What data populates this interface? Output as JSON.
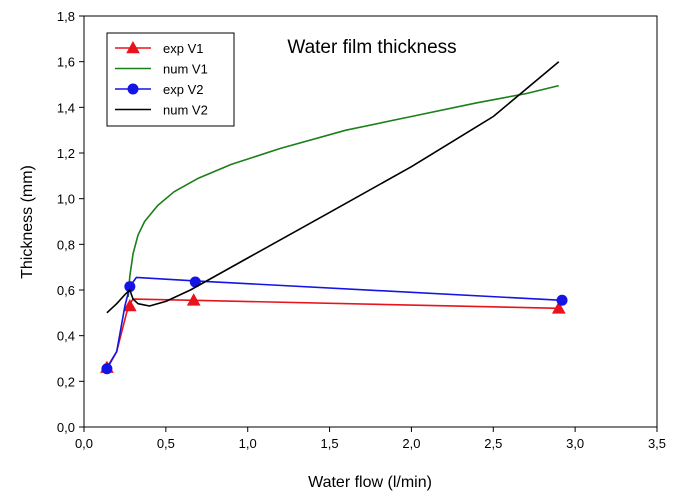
{
  "chart_data": {
    "type": "line",
    "title": "Water film thickness",
    "xlabel": "Water flow (l/min)",
    "ylabel": "Thickness (mm)",
    "xlim": [
      0,
      3.5
    ],
    "ylim": [
      0,
      1.8
    ],
    "xticks": [
      "0,0",
      "0,5",
      "1,0",
      "1,5",
      "2,0",
      "2,5",
      "3,0",
      "3,5"
    ],
    "xtick_values": [
      0,
      0.5,
      1.0,
      1.5,
      2.0,
      2.5,
      3.0,
      3.5
    ],
    "yticks": [
      "0,0",
      "0,2",
      "0,4",
      "0,6",
      "0,8",
      "1,0",
      "1,2",
      "1,4",
      "1,6",
      "1,8"
    ],
    "ytick_values": [
      0,
      0.2,
      0.4,
      0.6,
      0.8,
      1.0,
      1.2,
      1.4,
      1.6,
      1.8
    ],
    "grid": false,
    "legend_position": "top-left",
    "series": [
      {
        "name": "exp V1",
        "kind": "experimental",
        "marker": "triangle",
        "color": "#e8141c",
        "points": [
          [
            0.14,
            0.26
          ],
          [
            0.28,
            0.53
          ],
          [
            0.67,
            0.555
          ],
          [
            2.9,
            0.52
          ]
        ],
        "curve": [
          [
            0.14,
            0.26
          ],
          [
            0.2,
            0.33
          ],
          [
            0.26,
            0.5
          ],
          [
            0.28,
            0.54
          ],
          [
            0.3,
            0.56
          ],
          [
            0.67,
            0.555
          ],
          [
            2.9,
            0.52
          ]
        ]
      },
      {
        "name": "num V1",
        "kind": "numerical",
        "marker": "none",
        "color": "#1a7f1a",
        "curve": [
          [
            0.27,
            0.57
          ],
          [
            0.28,
            0.66
          ],
          [
            0.3,
            0.76
          ],
          [
            0.33,
            0.84
          ],
          [
            0.37,
            0.9
          ],
          [
            0.45,
            0.97
          ],
          [
            0.55,
            1.03
          ],
          [
            0.7,
            1.09
          ],
          [
            0.9,
            1.15
          ],
          [
            1.2,
            1.22
          ],
          [
            1.6,
            1.3
          ],
          [
            2.0,
            1.36
          ],
          [
            2.4,
            1.42
          ],
          [
            2.7,
            1.46
          ],
          [
            2.9,
            1.495
          ]
        ]
      },
      {
        "name": "exp V2",
        "kind": "experimental",
        "marker": "circle",
        "color": "#1414e6",
        "points": [
          [
            0.14,
            0.255
          ],
          [
            0.28,
            0.615
          ],
          [
            0.68,
            0.635
          ],
          [
            2.92,
            0.555
          ]
        ],
        "curve": [
          [
            0.14,
            0.255
          ],
          [
            0.2,
            0.33
          ],
          [
            0.25,
            0.53
          ],
          [
            0.28,
            0.615
          ],
          [
            0.32,
            0.655
          ],
          [
            0.68,
            0.64
          ],
          [
            2.92,
            0.555
          ]
        ]
      },
      {
        "name": "num V2",
        "kind": "numerical",
        "marker": "none",
        "color": "#000000",
        "curve": [
          [
            0.14,
            0.5
          ],
          [
            0.2,
            0.54
          ],
          [
            0.25,
            0.58
          ],
          [
            0.28,
            0.6
          ],
          [
            0.3,
            0.56
          ],
          [
            0.33,
            0.54
          ],
          [
            0.4,
            0.53
          ],
          [
            0.5,
            0.55
          ],
          [
            0.65,
            0.6
          ],
          [
            1.0,
            0.74
          ],
          [
            1.5,
            0.94
          ],
          [
            2.0,
            1.14
          ],
          [
            2.5,
            1.36
          ],
          [
            2.9,
            1.6
          ]
        ]
      }
    ]
  }
}
